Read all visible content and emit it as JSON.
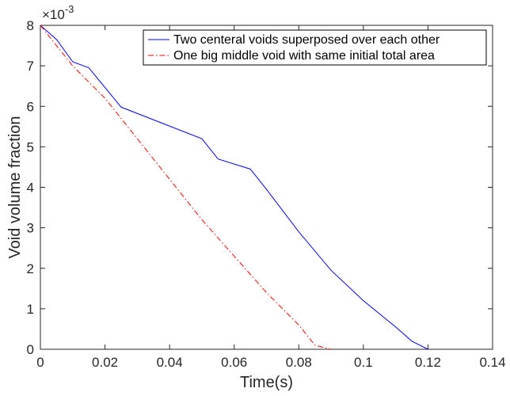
{
  "chart_data": {
    "type": "line",
    "xlabel": "Time(s)",
    "ylabel": "Void volume fraction",
    "y_multiplier": {
      "base": "×10",
      "exponent": "-3"
    },
    "xlim": [
      0,
      0.14
    ],
    "ylim": [
      0,
      8
    ],
    "xticks": [
      {
        "value": 0,
        "label": "0"
      },
      {
        "value": 0.02,
        "label": "0.02"
      },
      {
        "value": 0.04,
        "label": "0.04"
      },
      {
        "value": 0.06,
        "label": "0.06"
      },
      {
        "value": 0.08,
        "label": "0.08"
      },
      {
        "value": 0.1,
        "label": "0.1"
      },
      {
        "value": 0.12,
        "label": "0.12"
      },
      {
        "value": 0.14,
        "label": "0.14"
      }
    ],
    "yticks": [
      {
        "value": 0,
        "label": "0"
      },
      {
        "value": 1,
        "label": "1"
      },
      {
        "value": 2,
        "label": "2"
      },
      {
        "value": 3,
        "label": "3"
      },
      {
        "value": 4,
        "label": "4"
      },
      {
        "value": 5,
        "label": "5"
      },
      {
        "value": 6,
        "label": "6"
      },
      {
        "value": 7,
        "label": "7"
      },
      {
        "value": 8,
        "label": "8"
      }
    ],
    "grid": false,
    "legend_position": "top-right",
    "series": [
      {
        "name": "Two centeral voids superposed over each other",
        "color": "#0000ff",
        "style": "solid",
        "x": [
          0,
          0.005,
          0.01,
          0.015,
          0.025,
          0.05,
          0.055,
          0.065,
          0.07,
          0.08,
          0.09,
          0.1,
          0.11,
          0.115,
          0.12
        ],
        "y": [
          8.0,
          7.65,
          7.1,
          6.95,
          5.98,
          5.2,
          4.7,
          4.45,
          3.95,
          2.9,
          1.95,
          1.2,
          0.55,
          0.2,
          0.0
        ]
      },
      {
        "name": "One big middle void with same initial total area",
        "color": "#ff0000",
        "style": "dashdot",
        "x": [
          0,
          0.01,
          0.02,
          0.03,
          0.04,
          0.05,
          0.06,
          0.07,
          0.08,
          0.085,
          0.09
        ],
        "y": [
          8.0,
          7.0,
          6.2,
          5.2,
          4.2,
          3.2,
          2.3,
          1.4,
          0.6,
          0.1,
          0.0
        ]
      }
    ]
  }
}
